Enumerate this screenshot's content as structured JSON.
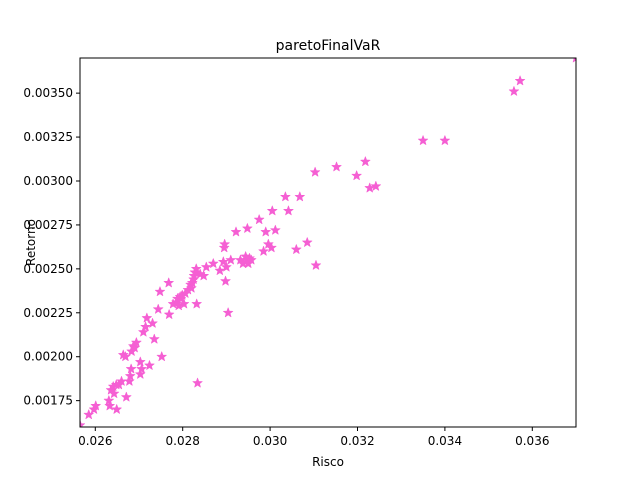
{
  "chart_data": {
    "type": "scatter",
    "title": "paretoFinalVaR",
    "xlabel": "Risco",
    "ylabel": "Retorno",
    "xlim": [
      0.02565,
      0.037
    ],
    "ylim": [
      0.0016,
      0.0037
    ],
    "xticks": [
      0.026,
      0.028,
      0.03,
      0.032,
      0.034,
      0.036
    ],
    "xtick_labels": [
      "0.026",
      "0.028",
      "0.030",
      "0.032",
      "0.034",
      "0.036"
    ],
    "yticks": [
      0.00175,
      0.002,
      0.00225,
      0.0025,
      0.00275,
      0.003,
      0.00325,
      0.0035
    ],
    "ytick_labels": [
      "0.00175",
      "0.00200",
      "0.00225",
      "0.00250",
      "0.00275",
      "0.00300",
      "0.00325",
      "0.00350"
    ],
    "marker": "star",
    "marker_color": "#f55fd3",
    "grid": false,
    "series": [
      {
        "points": [
          [
            0.02565,
            0.00161
          ],
          [
            0.02585,
            0.00167
          ],
          [
            0.02597,
            0.0017
          ],
          [
            0.02601,
            0.00172
          ],
          [
            0.02631,
            0.00175
          ],
          [
            0.02633,
            0.00172
          ],
          [
            0.02636,
            0.00181
          ],
          [
            0.02641,
            0.00183
          ],
          [
            0.02643,
            0.00179
          ],
          [
            0.02648,
            0.00184
          ],
          [
            0.02649,
            0.0017
          ],
          [
            0.02654,
            0.00184
          ],
          [
            0.0266,
            0.00186
          ],
          [
            0.02664,
            0.00201
          ],
          [
            0.02669,
            0.002
          ],
          [
            0.02671,
            0.00177
          ],
          [
            0.02678,
            0.00186
          ],
          [
            0.0268,
            0.00189
          ],
          [
            0.02682,
            0.00193
          ],
          [
            0.02683,
            0.00203
          ],
          [
            0.02687,
            0.00206
          ],
          [
            0.0269,
            0.00205
          ],
          [
            0.02694,
            0.00208
          ],
          [
            0.02703,
            0.00197
          ],
          [
            0.02703,
            0.0019
          ],
          [
            0.02706,
            0.00193
          ],
          [
            0.0271,
            0.00214
          ],
          [
            0.02715,
            0.00217
          ],
          [
            0.02718,
            0.00222
          ],
          [
            0.02724,
            0.00195
          ],
          [
            0.02731,
            0.00219
          ],
          [
            0.02735,
            0.0021
          ],
          [
            0.02744,
            0.00227
          ],
          [
            0.02748,
            0.00237
          ],
          [
            0.02752,
            0.002
          ],
          [
            0.02768,
            0.00242
          ],
          [
            0.02769,
            0.00224
          ],
          [
            0.02778,
            0.0023
          ],
          [
            0.02786,
            0.00231
          ],
          [
            0.02788,
            0.00233
          ],
          [
            0.02791,
            0.00229
          ],
          [
            0.02794,
            0.00234
          ],
          [
            0.02796,
            0.00233
          ],
          [
            0.02799,
            0.00235
          ],
          [
            0.02803,
            0.0023
          ],
          [
            0.02806,
            0.00236
          ],
          [
            0.02812,
            0.00238
          ],
          [
            0.02818,
            0.00241
          ],
          [
            0.0282,
            0.00239
          ],
          [
            0.02822,
            0.00242
          ],
          [
            0.02825,
            0.00244
          ],
          [
            0.02826,
            0.00246
          ],
          [
            0.02828,
            0.00248
          ],
          [
            0.02831,
            0.0025
          ],
          [
            0.02832,
            0.0023
          ],
          [
            0.02834,
            0.00185
          ],
          [
            0.0284,
            0.00247
          ],
          [
            0.02848,
            0.00246
          ],
          [
            0.02854,
            0.00251
          ],
          [
            0.0287,
            0.00253
          ],
          [
            0.02885,
            0.00249
          ],
          [
            0.02893,
            0.00254
          ],
          [
            0.02895,
            0.00262
          ],
          [
            0.02896,
            0.00264
          ],
          [
            0.02898,
            0.00243
          ],
          [
            0.029,
            0.00251
          ],
          [
            0.02904,
            0.00225
          ],
          [
            0.0291,
            0.00255
          ],
          [
            0.02922,
            0.00271
          ],
          [
            0.02932,
            0.00255
          ],
          [
            0.02938,
            0.00253
          ],
          [
            0.02944,
            0.00257
          ],
          [
            0.02946,
            0.00255
          ],
          [
            0.02948,
            0.00273
          ],
          [
            0.0295,
            0.00253
          ],
          [
            0.02953,
            0.00256
          ],
          [
            0.02957,
            0.00255
          ],
          [
            0.02975,
            0.00278
          ],
          [
            0.02985,
            0.0026
          ],
          [
            0.0299,
            0.00271
          ],
          [
            0.02996,
            0.00264
          ],
          [
            0.03003,
            0.00262
          ],
          [
            0.03005,
            0.00283
          ],
          [
            0.03012,
            0.00272
          ],
          [
            0.03035,
            0.00291
          ],
          [
            0.03042,
            0.00283
          ],
          [
            0.0306,
            0.00261
          ],
          [
            0.03068,
            0.00291
          ],
          [
            0.03085,
            0.00265
          ],
          [
            0.03103,
            0.00305
          ],
          [
            0.03105,
            0.00252
          ],
          [
            0.03152,
            0.00308
          ],
          [
            0.03198,
            0.00303
          ],
          [
            0.03218,
            0.00311
          ],
          [
            0.03228,
            0.00296
          ],
          [
            0.03242,
            0.00297
          ],
          [
            0.0335,
            0.00323
          ],
          [
            0.034,
            0.00323
          ],
          [
            0.03558,
            0.00351
          ],
          [
            0.03572,
            0.00357
          ],
          [
            0.037,
            0.0037
          ]
        ]
      }
    ]
  }
}
